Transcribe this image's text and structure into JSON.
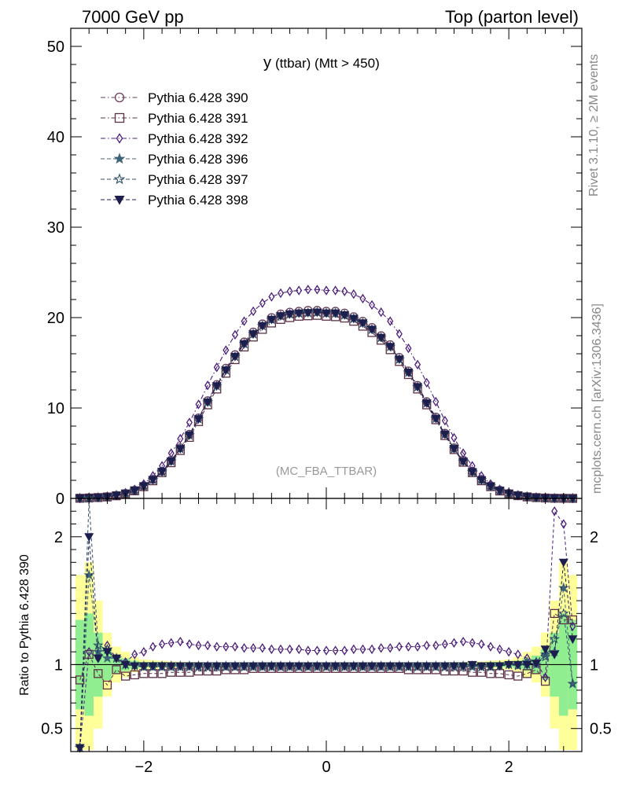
{
  "header": {
    "left": "7000 GeV pp",
    "right": "Top (parton level)"
  },
  "side_labels": {
    "rivet": "Rivet 3.1.10, ≥ 2M events",
    "mcplots": "mcplots.cern.ch [arXiv:1306.3436]"
  },
  "colors": {
    "series_390": "#6b3f5e",
    "series_391": "#5c3046",
    "series_392": "#4b1f7a",
    "series_396": "#3e6378",
    "series_397": "#2f4e66",
    "series_398": "#1c1f4d",
    "band_inner": "#90ee90",
    "band_outer": "#ffff99"
  },
  "chart_data": [
    {
      "type": "line",
      "title": "y",
      "title_suffix": "(ttbar) (Mtt > 450)",
      "watermark": "(MC_FBA_TTBAR)",
      "ylim": [
        0,
        52
      ],
      "xlim": [
        -2.8,
        2.8
      ],
      "y_ticks": [
        0,
        10,
        20,
        30,
        40,
        50
      ],
      "y_tick_labels": [
        "0",
        "10",
        "20",
        "30",
        "40",
        "50"
      ],
      "legend_placement": "top-left",
      "x": [
        -2.7,
        -2.6,
        -2.5,
        -2.4,
        -2.3,
        -2.2,
        -2.1,
        -2.0,
        -1.9,
        -1.8,
        -1.7,
        -1.6,
        -1.5,
        -1.4,
        -1.3,
        -1.2,
        -1.1,
        -1.0,
        -0.9,
        -0.8,
        -0.7,
        -0.6,
        -0.5,
        -0.4,
        -0.3,
        -0.2,
        -0.1,
        0.0,
        0.1,
        0.2,
        0.3,
        0.4,
        0.5,
        0.6,
        0.7,
        0.8,
        0.9,
        1.0,
        1.1,
        1.2,
        1.3,
        1.4,
        1.5,
        1.6,
        1.7,
        1.8,
        1.9,
        2.0,
        2.1,
        2.2,
        2.3,
        2.4,
        2.5,
        2.6,
        2.7
      ],
      "series": [
        {
          "name": "Pythia 6.428 390",
          "marker": "circle-open",
          "line": "dash-dot",
          "color_key": "series_390",
          "values": [
            0.02,
            0.05,
            0.1,
            0.19,
            0.33,
            0.55,
            0.9,
            1.4,
            2.1,
            3.0,
            4.2,
            5.6,
            7.1,
            8.9,
            10.8,
            12.6,
            14.4,
            15.9,
            17.3,
            18.4,
            19.3,
            20.0,
            20.4,
            20.6,
            20.7,
            20.8,
            20.8,
            20.7,
            20.7,
            20.5,
            20.1,
            19.6,
            18.9,
            18.0,
            17.0,
            15.6,
            14.1,
            12.5,
            10.7,
            9.0,
            7.2,
            5.6,
            4.2,
            3.0,
            2.1,
            1.4,
            0.9,
            0.55,
            0.33,
            0.19,
            0.1,
            0.05,
            0.02,
            0.01,
            0.005
          ]
        },
        {
          "name": "Pythia 6.428 391",
          "marker": "square-open",
          "line": "dash-dot",
          "color_key": "series_391",
          "values": [
            0.018,
            0.05,
            0.095,
            0.16,
            0.29,
            0.5,
            0.84,
            1.3,
            1.95,
            2.85,
            3.95,
            5.3,
            6.75,
            8.5,
            10.35,
            12.1,
            13.85,
            15.35,
            16.75,
            17.85,
            18.7,
            19.4,
            19.8,
            20.0,
            20.15,
            20.2,
            20.25,
            20.15,
            20.1,
            19.95,
            19.6,
            19.05,
            18.35,
            17.5,
            16.45,
            15.15,
            13.7,
            12.1,
            10.35,
            8.7,
            6.95,
            5.4,
            4.0,
            2.85,
            1.95,
            1.3,
            0.82,
            0.5,
            0.3,
            0.17,
            0.09,
            0.045,
            0.018,
            0.01,
            0.005
          ]
        },
        {
          "name": "Pythia 6.428 392",
          "marker": "diamond-open",
          "line": "dash-dot",
          "color_key": "series_392",
          "values": [
            0.02,
            0.05,
            0.11,
            0.21,
            0.37,
            0.62,
            1.0,
            1.6,
            2.5,
            3.6,
            5.0,
            6.6,
            8.4,
            10.4,
            12.5,
            14.5,
            16.4,
            18.1,
            19.6,
            20.7,
            21.6,
            22.3,
            22.7,
            22.9,
            23.0,
            23.1,
            23.1,
            23.0,
            23.0,
            22.9,
            22.6,
            22.1,
            21.4,
            20.6,
            19.6,
            18.2,
            16.6,
            14.8,
            12.8,
            10.7,
            8.6,
            6.7,
            5.0,
            3.6,
            2.5,
            1.6,
            1.0,
            0.62,
            0.37,
            0.21,
            0.11,
            0.05,
            0.02,
            0.01,
            0.005
          ]
        },
        {
          "name": "Pythia 6.428 396",
          "marker": "star-filled",
          "line": "dash",
          "color_key": "series_396",
          "values": [
            0.02,
            0.05,
            0.1,
            0.18,
            0.33,
            0.55,
            0.88,
            1.38,
            2.08,
            2.98,
            4.12,
            5.5,
            7.0,
            8.8,
            10.65,
            12.45,
            14.2,
            15.7,
            17.1,
            18.2,
            19.1,
            19.8,
            20.2,
            20.4,
            20.5,
            20.55,
            20.6,
            20.5,
            20.5,
            20.3,
            19.9,
            19.4,
            18.7,
            17.8,
            16.8,
            15.4,
            13.95,
            12.35,
            10.55,
            8.85,
            7.1,
            5.5,
            4.1,
            2.95,
            2.05,
            1.35,
            0.87,
            0.54,
            0.33,
            0.19,
            0.1,
            0.05,
            0.02,
            0.01,
            0.005
          ]
        },
        {
          "name": "Pythia 6.428 397",
          "marker": "star-open",
          "line": "dash",
          "color_key": "series_397",
          "values": [
            0.02,
            0.05,
            0.1,
            0.18,
            0.33,
            0.55,
            0.88,
            1.37,
            2.06,
            2.96,
            4.1,
            5.48,
            6.97,
            8.77,
            10.62,
            12.42,
            14.17,
            15.67,
            17.07,
            18.17,
            19.07,
            19.77,
            20.17,
            20.37,
            20.47,
            20.52,
            20.57,
            20.47,
            20.47,
            20.27,
            19.87,
            19.37,
            18.67,
            17.77,
            16.77,
            15.37,
            13.92,
            12.32,
            10.52,
            8.82,
            7.07,
            5.47,
            4.07,
            2.92,
            2.02,
            1.33,
            0.86,
            0.54,
            0.33,
            0.19,
            0.1,
            0.05,
            0.02,
            0.01,
            0.005
          ]
        },
        {
          "name": "Pythia 6.428 398",
          "marker": "triangle-down-filled",
          "line": "dash",
          "color_key": "series_398",
          "values": [
            0.02,
            0.06,
            0.1,
            0.18,
            0.33,
            0.55,
            0.88,
            1.38,
            2.08,
            2.98,
            4.12,
            5.5,
            7.0,
            8.8,
            10.65,
            12.45,
            14.2,
            15.7,
            17.1,
            18.2,
            19.1,
            19.8,
            20.2,
            20.4,
            20.5,
            20.55,
            20.6,
            20.5,
            20.5,
            20.3,
            19.9,
            19.4,
            18.7,
            17.8,
            16.8,
            15.4,
            13.95,
            12.35,
            10.55,
            8.85,
            7.1,
            5.5,
            4.1,
            2.95,
            2.05,
            1.35,
            0.87,
            0.54,
            0.33,
            0.19,
            0.1,
            0.05,
            0.02,
            0.01,
            0.005
          ]
        }
      ]
    },
    {
      "type": "line",
      "ylabel": "Ratio to Pythia 6.428 390",
      "ylim": [
        0.32,
        2.3
      ],
      "xlim": [
        -2.8,
        2.8
      ],
      "y_ticks": [
        0.5,
        1,
        2
      ],
      "y_tick_labels": [
        "0.5",
        "1",
        "2"
      ],
      "x_ticks": [
        -2,
        0,
        2
      ],
      "x_tick_labels": [
        "−2",
        "0",
        "2"
      ],
      "reference_line": 1,
      "x": [
        -2.7,
        -2.6,
        -2.5,
        -2.4,
        -2.3,
        -2.2,
        -2.1,
        -2.0,
        -1.9,
        -1.8,
        -1.7,
        -1.6,
        -1.5,
        -1.4,
        -1.3,
        -1.2,
        -1.1,
        -1.0,
        -0.9,
        -0.8,
        -0.7,
        -0.6,
        -0.5,
        -0.4,
        -0.3,
        -0.2,
        -0.1,
        0.0,
        0.1,
        0.2,
        0.3,
        0.4,
        0.5,
        0.6,
        0.7,
        0.8,
        0.9,
        1.0,
        1.1,
        1.2,
        1.3,
        1.4,
        1.5,
        1.6,
        1.7,
        1.8,
        1.9,
        2.0,
        2.1,
        2.2,
        2.3,
        2.4,
        2.5,
        2.6,
        2.7
      ],
      "bands": {
        "inner": [
          0.35,
          0.4,
          0.25,
          0.12,
          0.07,
          0.05,
          0.03,
          0.02,
          0.02,
          0.02,
          0.015,
          0.015,
          0.012,
          0.012,
          0.01,
          0.01,
          0.01,
          0.01,
          0.01,
          0.01,
          0.01,
          0.01,
          0.01,
          0.01,
          0.01,
          0.01,
          0.01,
          0.01,
          0.01,
          0.01,
          0.01,
          0.01,
          0.01,
          0.01,
          0.01,
          0.01,
          0.01,
          0.01,
          0.01,
          0.01,
          0.01,
          0.012,
          0.012,
          0.015,
          0.015,
          0.02,
          0.02,
          0.02,
          0.03,
          0.05,
          0.07,
          0.12,
          0.25,
          0.4,
          0.35
        ],
        "outer": [
          0.7,
          0.8,
          0.5,
          0.25,
          0.14,
          0.1,
          0.06,
          0.04,
          0.035,
          0.03,
          0.025,
          0.022,
          0.02,
          0.02,
          0.018,
          0.018,
          0.016,
          0.016,
          0.015,
          0.015,
          0.015,
          0.015,
          0.015,
          0.015,
          0.015,
          0.015,
          0.015,
          0.015,
          0.015,
          0.015,
          0.015,
          0.015,
          0.015,
          0.015,
          0.015,
          0.015,
          0.015,
          0.016,
          0.016,
          0.018,
          0.018,
          0.02,
          0.02,
          0.022,
          0.025,
          0.03,
          0.035,
          0.04,
          0.06,
          0.1,
          0.14,
          0.25,
          0.5,
          0.8,
          0.7
        ]
      },
      "series": [
        {
          "name": "Pythia 6.428 391",
          "marker": "square-open",
          "color_key": "series_391",
          "values": [
            0.88,
            1.08,
            0.93,
            0.84,
            0.96,
            0.91,
            0.92,
            0.93,
            0.93,
            0.93,
            0.94,
            0.94,
            0.94,
            0.95,
            0.95,
            0.95,
            0.96,
            0.96,
            0.96,
            0.97,
            0.97,
            0.97,
            0.97,
            0.97,
            0.97,
            0.97,
            0.97,
            0.97,
            0.97,
            0.97,
            0.97,
            0.97,
            0.97,
            0.97,
            0.97,
            0.97,
            0.96,
            0.96,
            0.96,
            0.96,
            0.95,
            0.95,
            0.95,
            0.94,
            0.94,
            0.93,
            0.93,
            0.92,
            0.91,
            0.93,
            0.96,
            0.87,
            1.4,
            1.35,
            1.35
          ]
        },
        {
          "name": "Pythia 6.428 392",
          "marker": "diamond-open",
          "color_key": "series_392",
          "values": [
            0.35,
            1.1,
            1.05,
            1.15,
            1.05,
            1.02,
            1.08,
            1.1,
            1.14,
            1.16,
            1.17,
            1.18,
            1.16,
            1.15,
            1.15,
            1.14,
            1.14,
            1.14,
            1.13,
            1.13,
            1.13,
            1.12,
            1.12,
            1.12,
            1.12,
            1.11,
            1.11,
            1.11,
            1.11,
            1.11,
            1.12,
            1.12,
            1.12,
            1.13,
            1.13,
            1.14,
            1.14,
            1.14,
            1.15,
            1.15,
            1.16,
            1.17,
            1.18,
            1.17,
            1.16,
            1.14,
            1.12,
            1.1,
            1.08,
            1.05,
            1.02,
            0.9,
            2.2,
            2.1,
            1.3
          ]
        },
        {
          "name": "Pythia 6.428 396",
          "marker": "star-filled",
          "color_key": "series_396",
          "values": [
            0.35,
            1.7,
            1.1,
            1.05,
            1.05,
            1.0,
            1.0,
            0.99,
            0.99,
            0.99,
            0.99,
            0.99,
            0.99,
            0.99,
            0.99,
            0.99,
            0.99,
            0.99,
            0.99,
            0.99,
            0.99,
            0.99,
            0.99,
            0.99,
            0.99,
            0.99,
            0.99,
            0.99,
            0.99,
            0.99,
            0.99,
            0.99,
            0.99,
            0.99,
            0.99,
            0.99,
            0.99,
            0.99,
            0.99,
            0.99,
            0.99,
            0.99,
            0.99,
            0.98,
            0.98,
            0.99,
            0.99,
            1.0,
            1.0,
            1.02,
            1.0,
            1.08,
            1.1,
            1.6,
            0.85
          ]
        },
        {
          "name": "Pythia 6.428 397",
          "marker": "star-open",
          "color_key": "series_397",
          "values": [
            0.35,
            2.3,
            1.15,
            1.12,
            1.05,
            1.0,
            0.99,
            0.98,
            0.98,
            0.98,
            0.98,
            0.98,
            0.98,
            0.98,
            0.98,
            0.98,
            0.98,
            0.98,
            0.98,
            0.98,
            0.98,
            0.98,
            0.98,
            0.98,
            0.98,
            0.98,
            0.98,
            0.98,
            0.98,
            0.98,
            0.98,
            0.98,
            0.98,
            0.98,
            0.98,
            0.98,
            0.98,
            0.98,
            0.98,
            0.98,
            0.98,
            0.98,
            0.98,
            0.99,
            0.98,
            0.98,
            0.99,
            1.0,
            0.99,
            1.0,
            1.02,
            1.06,
            1.2,
            1.4,
            0.85
          ]
        },
        {
          "name": "Pythia 6.428 398",
          "marker": "triangle-down-filled",
          "color_key": "series_398",
          "values": [
            0.35,
            2.0,
            1.05,
            1.1,
            1.05,
            1.0,
            0.99,
            0.99,
            0.99,
            0.99,
            0.99,
            0.99,
            0.99,
            0.99,
            0.99,
            0.99,
            0.99,
            0.99,
            0.99,
            0.99,
            0.99,
            0.99,
            0.99,
            0.99,
            0.99,
            0.99,
            0.99,
            0.99,
            0.99,
            0.99,
            0.99,
            0.99,
            0.99,
            0.99,
            0.99,
            0.99,
            0.99,
            0.99,
            0.99,
            0.99,
            0.99,
            0.99,
            0.99,
            1.0,
            0.99,
            0.99,
            0.99,
            1.0,
            1.0,
            1.0,
            1.01,
            1.12,
            1.08,
            1.8,
            1.2
          ]
        }
      ]
    }
  ]
}
